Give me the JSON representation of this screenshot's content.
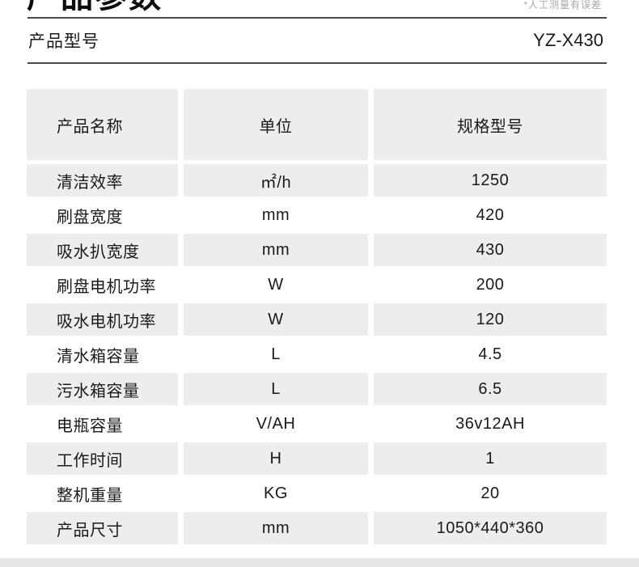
{
  "page": {
    "title": "产品参数",
    "note": "*人工测量有误差",
    "model_label": "产品型号",
    "model_value": "YZ-X430"
  },
  "table": {
    "headers": [
      "产品名称",
      "单位",
      "规格型号"
    ],
    "rows": [
      {
        "name": "清洁效率",
        "unit": "㎡/h",
        "spec": "1250"
      },
      {
        "name": "刷盘宽度",
        "unit": "mm",
        "spec": "420"
      },
      {
        "name": "吸水扒宽度",
        "unit": "mm",
        "spec": "430"
      },
      {
        "name": "刷盘电机功率",
        "unit": "W",
        "spec": "200"
      },
      {
        "name": "吸水电机功率",
        "unit": "W",
        "spec": "120"
      },
      {
        "name": "清水箱容量",
        "unit": "L",
        "spec": "4.5"
      },
      {
        "name": "污水箱容量",
        "unit": "L",
        "spec": "6.5"
      },
      {
        "name": "电瓶容量",
        "unit": "V/AH",
        "spec": "36v12AH"
      },
      {
        "name": "工作时间",
        "unit": "H",
        "spec": "1"
      },
      {
        "name": "整机重量",
        "unit": "KG",
        "spec": "20"
      },
      {
        "name": "产品尺寸",
        "unit": "mm",
        "spec": "1050*440*360"
      }
    ]
  },
  "colors": {
    "row_gray": "#ededed",
    "divider_line": "#4a4a4a",
    "bottom_bar": "#e5e5e5",
    "note_gray": "#a8a8a8",
    "text": "#1a1a1a"
  }
}
